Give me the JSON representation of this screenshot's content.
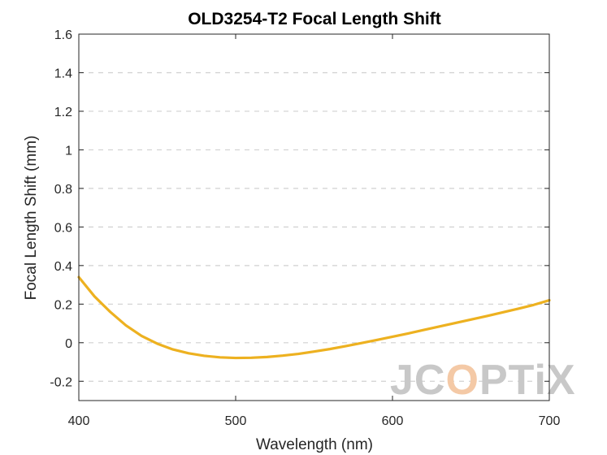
{
  "chart_data": {
    "type": "line",
    "title": "OLD3254-T2 Focal Length Shift",
    "xlabel": "Wavelength (nm)",
    "ylabel": "Focal Length Shift (mm)",
    "xlim": [
      400,
      700
    ],
    "ylim": [
      -0.3,
      1.6
    ],
    "xticks": [
      400,
      500,
      600,
      700
    ],
    "xtick_labels": [
      "400",
      "500",
      "600",
      "700"
    ],
    "yticks": [
      -0.2,
      0,
      0.2,
      0.4,
      0.6,
      0.8,
      1,
      1.2,
      1.4,
      1.6
    ],
    "ytick_labels": [
      "-0.2",
      "0",
      "0.2",
      "0.4",
      "0.6",
      "0.8",
      "1",
      "1.2",
      "1.4",
      "1.6"
    ],
    "grid": {
      "y": "dashed",
      "x": "off"
    },
    "series": [
      {
        "color": "#EDB120",
        "x": [
          400,
          410,
          420,
          430,
          440,
          450,
          460,
          470,
          480,
          490,
          500,
          510,
          520,
          530,
          540,
          550,
          560,
          570,
          580,
          590,
          600,
          610,
          620,
          630,
          640,
          650,
          660,
          670,
          680,
          690,
          700
        ],
        "y": [
          0.34,
          0.24,
          0.16,
          0.09,
          0.035,
          -0.005,
          -0.035,
          -0.055,
          -0.068,
          -0.076,
          -0.079,
          -0.078,
          -0.074,
          -0.067,
          -0.058,
          -0.046,
          -0.033,
          -0.018,
          -0.002,
          0.014,
          0.031,
          0.048,
          0.066,
          0.084,
          0.102,
          0.12,
          0.138,
          0.157,
          0.176,
          0.196,
          0.22
        ]
      }
    ]
  },
  "watermark": {
    "text_parts": [
      "JC",
      "O",
      "PTiX"
    ],
    "colors": [
      "#c8c8c8",
      "#f4c9a6",
      "#c8c8c8"
    ]
  }
}
